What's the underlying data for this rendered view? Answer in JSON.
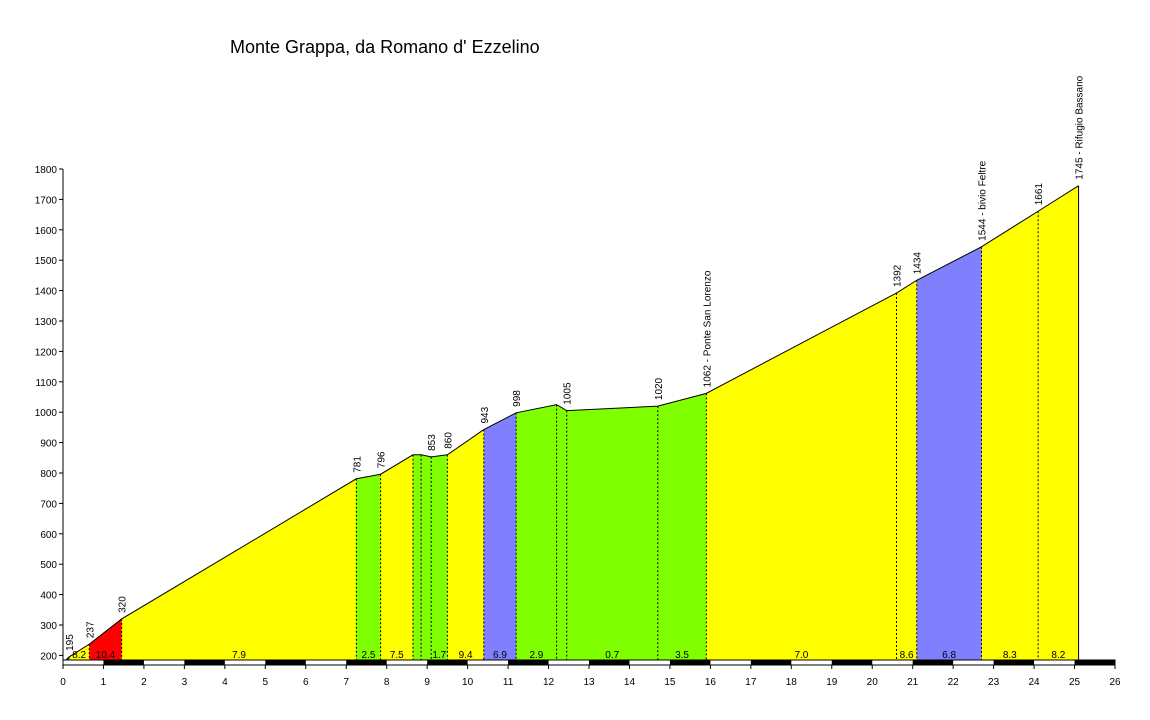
{
  "chart_data": {
    "type": "area",
    "title": "Monte Grappa, da Romano d' Ezzelino",
    "xlim": [
      0,
      26
    ],
    "ylim": [
      175,
      1800
    ],
    "x_ticks": [
      "0",
      "1",
      "2",
      "3",
      "4",
      "5",
      "6",
      "7",
      "8",
      "9",
      "10",
      "11",
      "12",
      "13",
      "14",
      "15",
      "16",
      "17",
      "18",
      "19",
      "20",
      "21",
      "22",
      "23",
      "24",
      "25",
      "26"
    ],
    "y_ticks": [
      "200",
      "300",
      "400",
      "500",
      "600",
      "700",
      "800",
      "900",
      "1000",
      "1100",
      "1200",
      "1300",
      "1400",
      "1500",
      "1600",
      "1700",
      "1800"
    ],
    "profile": [
      {
        "x": 0,
        "y": 175
      },
      {
        "x": 0.15,
        "y": 195
      },
      {
        "x": 0.65,
        "y": 237
      },
      {
        "x": 1.45,
        "y": 320
      },
      {
        "x": 7.25,
        "y": 781
      },
      {
        "x": 7.85,
        "y": 796
      },
      {
        "x": 8.65,
        "y": 860
      },
      {
        "x": 8.85,
        "y": 860
      },
      {
        "x": 9.1,
        "y": 853
      },
      {
        "x": 9.5,
        "y": 860
      },
      {
        "x": 10.4,
        "y": 943
      },
      {
        "x": 11.2,
        "y": 998
      },
      {
        "x": 12.2,
        "y": 1025
      },
      {
        "x": 12.45,
        "y": 1005
      },
      {
        "x": 14.7,
        "y": 1020
      },
      {
        "x": 15.9,
        "y": 1062
      },
      {
        "x": 20.6,
        "y": 1392
      },
      {
        "x": 21.1,
        "y": 1434
      },
      {
        "x": 22.7,
        "y": 1544
      },
      {
        "x": 24.1,
        "y": 1661
      },
      {
        "x": 25.1,
        "y": 1745
      }
    ],
    "segments": [
      {
        "x0": 0,
        "x1": 0.15,
        "gradient": "",
        "color": "#4040ff"
      },
      {
        "x0": 0.15,
        "x1": 0.65,
        "gradient": "8.2",
        "color": "#ffff00"
      },
      {
        "x0": 0.65,
        "x1": 1.45,
        "gradient": "10.4",
        "color": "#ff0000"
      },
      {
        "x0": 1.45,
        "x1": 7.25,
        "gradient": "7.9",
        "color": "#ffff00"
      },
      {
        "x0": 7.25,
        "x1": 7.85,
        "gradient": "2.5",
        "color": "#80ff00"
      },
      {
        "x0": 7.85,
        "x1": 8.65,
        "gradient": "7.5",
        "color": "#ffff00"
      },
      {
        "x0": 8.65,
        "x1": 8.85,
        "gradient": "",
        "color": "#80ff00"
      },
      {
        "x0": 8.85,
        "x1": 9.1,
        "gradient": "",
        "color": "#80ff00"
      },
      {
        "x0": 9.1,
        "x1": 9.5,
        "gradient": "1.7",
        "color": "#80ff00"
      },
      {
        "x0": 9.5,
        "x1": 10.4,
        "gradient": "9.4",
        "color": "#ffff00"
      },
      {
        "x0": 10.4,
        "x1": 11.2,
        "gradient": "6.9",
        "color": "#8080ff"
      },
      {
        "x0": 11.2,
        "x1": 12.2,
        "gradient": "2.9",
        "color": "#80ff00"
      },
      {
        "x0": 12.2,
        "x1": 12.45,
        "gradient": "",
        "color": "#80ff00"
      },
      {
        "x0": 12.45,
        "x1": 14.7,
        "gradient": "0.7",
        "color": "#80ff00"
      },
      {
        "x0": 14.7,
        "x1": 15.9,
        "gradient": "3.5",
        "color": "#80ff00"
      },
      {
        "x0": 15.9,
        "x1": 20.6,
        "gradient": "7.0",
        "color": "#ffff00"
      },
      {
        "x0": 20.6,
        "x1": 21.1,
        "gradient": "8.6",
        "color": "#ffff00"
      },
      {
        "x0": 21.1,
        "x1": 22.7,
        "gradient": "6.8",
        "color": "#8080ff"
      },
      {
        "x0": 22.7,
        "x1": 24.1,
        "gradient": "8.3",
        "color": "#ffff00"
      },
      {
        "x0": 24.1,
        "x1": 25.1,
        "gradient": "8.2",
        "color": "#ffff00"
      }
    ],
    "point_labels": [
      {
        "x": 0.15,
        "y": 195,
        "text": "195"
      },
      {
        "x": 0.65,
        "y": 237,
        "text": "237"
      },
      {
        "x": 1.45,
        "y": 320,
        "text": "320"
      },
      {
        "x": 7.25,
        "y": 781,
        "text": "781"
      },
      {
        "x": 7.85,
        "y": 796,
        "text": "796"
      },
      {
        "x": 9.1,
        "y": 853,
        "text": "853"
      },
      {
        "x": 9.5,
        "y": 860,
        "text": "860"
      },
      {
        "x": 10.4,
        "y": 943,
        "text": "943"
      },
      {
        "x": 11.2,
        "y": 998,
        "text": "998"
      },
      {
        "x": 12.45,
        "y": 1005,
        "text": "1005"
      },
      {
        "x": 14.7,
        "y": 1020,
        "text": "1020"
      },
      {
        "x": 15.9,
        "y": 1062,
        "text": "1062 - Ponte San Lorenzo"
      },
      {
        "x": 20.6,
        "y": 1392,
        "text": "1392"
      },
      {
        "x": 21.1,
        "y": 1434,
        "text": "1434"
      },
      {
        "x": 22.7,
        "y": 1544,
        "text": "1544 - bivio Feltre"
      },
      {
        "x": 24.1,
        "y": 1661,
        "text": "1661"
      },
      {
        "x": 25.1,
        "y": 1745,
        "text": "1745 - Rifugio Bassano"
      }
    ],
    "grid": false,
    "legend": "none"
  }
}
